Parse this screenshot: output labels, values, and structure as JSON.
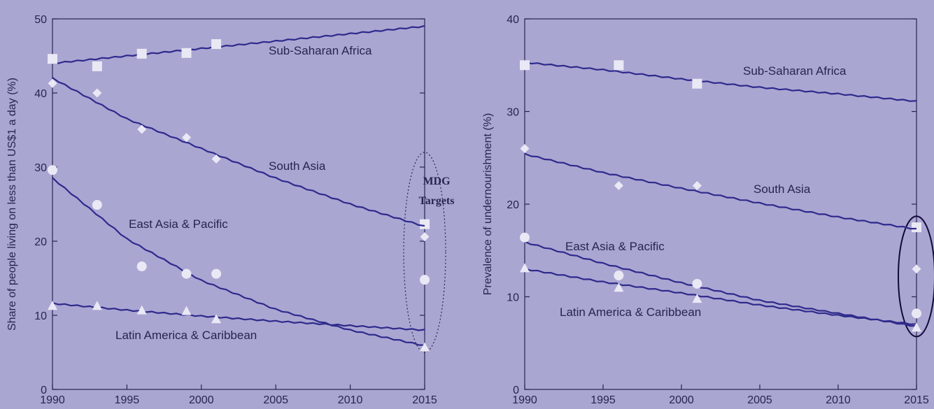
{
  "colors": {
    "background": "#aaa6d2",
    "trend_line": "#2e2a8c",
    "marker": "#e9e8f5",
    "axis": "#262650"
  },
  "annotations": {
    "mdg_target_label_line1": "MDG",
    "mdg_target_label_line2": "Targets"
  },
  "chart_data": [
    {
      "type": "line",
      "title": "",
      "xlabel": "",
      "ylabel": "Share of people living on less than US$1 a day (%)",
      "xlim": [
        1990,
        2015
      ],
      "ylim": [
        0,
        50
      ],
      "x_ticks": [
        1990,
        1995,
        2000,
        2005,
        2010,
        2015
      ],
      "y_ticks": [
        0,
        10,
        20,
        30,
        40,
        50
      ],
      "grid": false,
      "highlight": {
        "label": "MDG Targets",
        "x": 2015,
        "shape": "dotted-ellipse",
        "y_range": [
          5,
          32
        ]
      },
      "series": [
        {
          "name": "Sub-Saharan Africa",
          "marker": "square",
          "trend": [
            [
              1990,
              44
            ],
            [
              1995,
              45
            ],
            [
              2000,
              46
            ],
            [
              2005,
              47
            ],
            [
              2010,
              48
            ],
            [
              2015,
              49
            ]
          ],
          "points": [
            [
              1990,
              44.6
            ],
            [
              1993,
              43.6
            ],
            [
              1996,
              45.3
            ],
            [
              1999,
              45.4
            ],
            [
              2001,
              46.6
            ],
            [
              2015,
              22.3
            ]
          ]
        },
        {
          "name": "South Asia",
          "marker": "diamond",
          "trend": [
            [
              1990,
              42
            ],
            [
              1995,
              36.5
            ],
            [
              2000,
              32.5
            ],
            [
              2005,
              28.5
            ],
            [
              2010,
              25
            ],
            [
              2015,
              22
            ]
          ],
          "points": [
            [
              1990,
              41.3
            ],
            [
              1993,
              40
            ],
            [
              1996,
              35.1
            ],
            [
              1999,
              34
            ],
            [
              2001,
              31.1
            ],
            [
              2015,
              20.6
            ]
          ]
        },
        {
          "name": "East Asia & Pacific",
          "marker": "circle",
          "trend": [
            [
              1990,
              28.5
            ],
            [
              1995,
              20.3
            ],
            [
              2000,
              14.7
            ],
            [
              2005,
              10.8
            ],
            [
              2010,
              8
            ],
            [
              2015,
              5.9
            ]
          ],
          "points": [
            [
              1990,
              29.6
            ],
            [
              1993,
              24.9
            ],
            [
              1996,
              16.6
            ],
            [
              1999,
              15.6
            ],
            [
              2001,
              15.6
            ],
            [
              2015,
              14.8
            ]
          ]
        },
        {
          "name": "Latin America & Caribbean",
          "marker": "triangle",
          "trend": [
            [
              1990,
              11.6
            ],
            [
              1995,
              10.7
            ],
            [
              2000,
              9.9
            ],
            [
              2005,
              9.2
            ],
            [
              2010,
              8.6
            ],
            [
              2015,
              8
            ]
          ],
          "points": [
            [
              1990,
              11.3
            ],
            [
              1993,
              11.3
            ],
            [
              1996,
              10.7
            ],
            [
              1999,
              10.6
            ],
            [
              2001,
              9.5
            ],
            [
              2015,
              5.7
            ]
          ]
        }
      ]
    },
    {
      "type": "line",
      "title": "",
      "xlabel": "",
      "ylabel": "Prevalence of undernourishment (%)",
      "xlim": [
        1990,
        2015
      ],
      "ylim": [
        0,
        40
      ],
      "x_ticks": [
        1990,
        1995,
        2000,
        2005,
        2010,
        2015
      ],
      "y_ticks": [
        0,
        10,
        20,
        30,
        40
      ],
      "grid": false,
      "highlight": {
        "label": "",
        "x": 2015,
        "shape": "solid-ellipse",
        "y_range": [
          5.7,
          18.7
        ]
      },
      "series": [
        {
          "name": "Sub-Saharan Africa",
          "marker": "square",
          "trend": [
            [
              1990,
              35.3
            ],
            [
              1995,
              34.5
            ],
            [
              2000,
              33.5
            ],
            [
              2005,
              32.6
            ],
            [
              2010,
              31.9
            ],
            [
              2015,
              31.1
            ]
          ],
          "points": [
            [
              1990,
              35
            ],
            [
              1996,
              35
            ],
            [
              2001,
              33
            ],
            [
              2015,
              17.5
            ]
          ]
        },
        {
          "name": "South Asia",
          "marker": "diamond",
          "trend": [
            [
              1990,
              25.4
            ],
            [
              1995,
              23.4
            ],
            [
              2000,
              21.7
            ],
            [
              2005,
              20.1
            ],
            [
              2010,
              18.6
            ],
            [
              2015,
              17.3
            ]
          ],
          "points": [
            [
              1990,
              26
            ],
            [
              1996,
              22
            ],
            [
              2001,
              22
            ],
            [
              2015,
              13
            ]
          ]
        },
        {
          "name": "East Asia & Pacific",
          "marker": "circle",
          "trend": [
            [
              1990,
              15.9
            ],
            [
              1995,
              13.6
            ],
            [
              2000,
              11.5
            ],
            [
              2005,
              9.6
            ],
            [
              2010,
              8.2
            ],
            [
              2015,
              6.8
            ]
          ],
          "points": [
            [
              1990,
              16.4
            ],
            [
              1996,
              12.3
            ],
            [
              2001,
              11.4
            ],
            [
              2015,
              8.2
            ]
          ]
        },
        {
          "name": "Latin America & Caribbean",
          "marker": "triangle",
          "trend": [
            [
              1990,
              13
            ],
            [
              1995,
              11.6
            ],
            [
              2000,
              10.4
            ],
            [
              2005,
              9.1
            ],
            [
              2010,
              8
            ],
            [
              2015,
              7
            ]
          ],
          "points": [
            [
              1990,
              13.1
            ],
            [
              1996,
              11
            ],
            [
              2001,
              9.8
            ],
            [
              2015,
              6.7
            ]
          ]
        }
      ]
    }
  ]
}
